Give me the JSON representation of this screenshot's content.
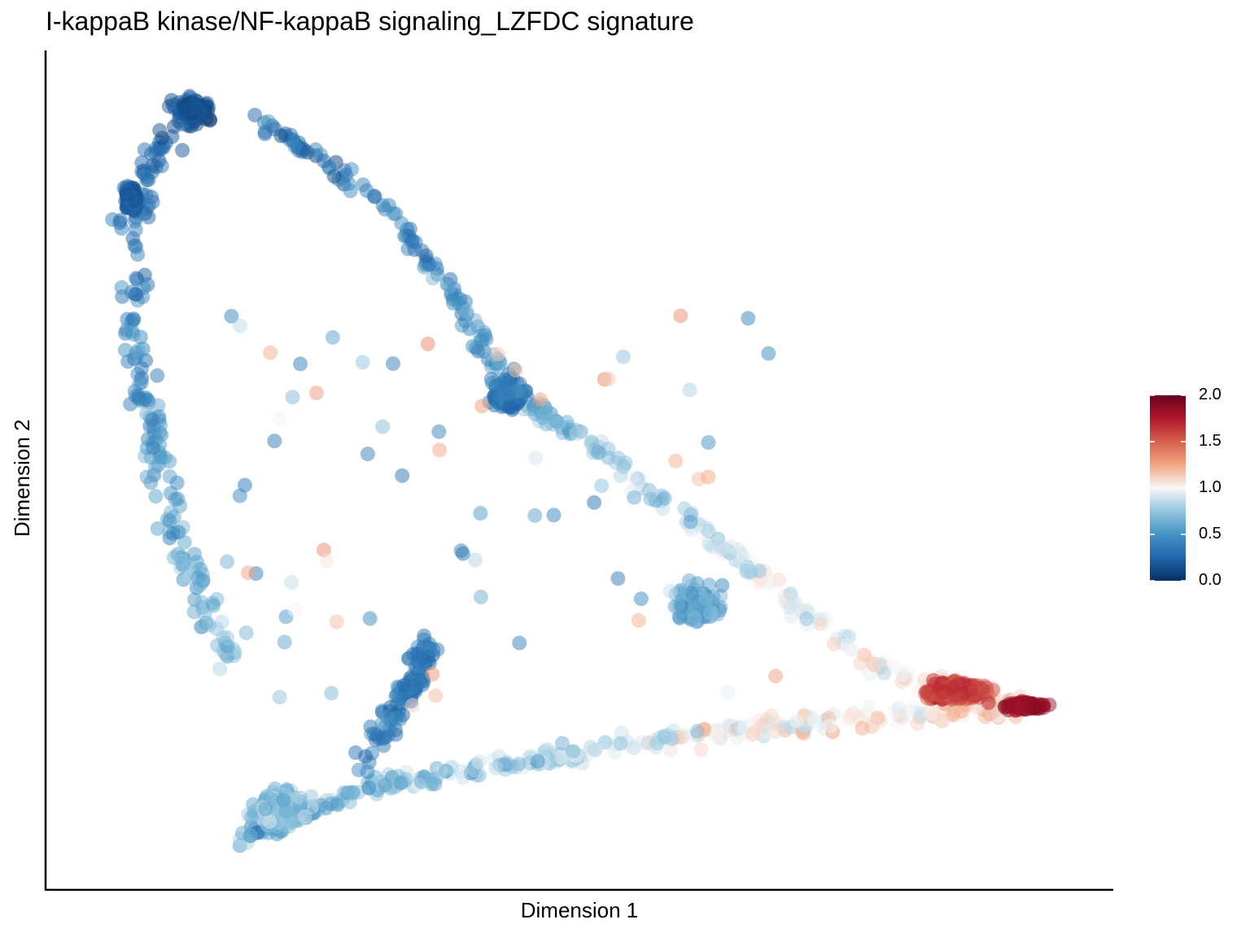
{
  "title": "I-kappaB kinase/NF-kappaB signaling_LZFDC signature",
  "chart_data": {
    "type": "scatter",
    "title": "I-kappaB kinase/NF-kappaB signaling_LZFDC signature",
    "xlabel": "Dimension 1",
    "ylabel": "Dimension 2",
    "x_ticks": "none",
    "y_ticks": "none",
    "grid": false,
    "legend": {
      "type": "colorbar",
      "position": "right",
      "range": [
        0.0,
        2.0
      ],
      "ticks": [
        "2.0",
        "1.5",
        "1.0",
        "0.5",
        "0.0"
      ],
      "colors": [
        "#053061",
        "#2166ac",
        "#4393c3",
        "#92c5de",
        "#f7f7f7",
        "#f4a582",
        "#d6604d",
        "#b2182b",
        "#67001f"
      ]
    },
    "marker_opacity": 0.5,
    "structure": {
      "x_range": [
        0,
        1
      ],
      "y_range": [
        0,
        1
      ],
      "branch_top_left_arc": {
        "x": [
          0.12,
          0.1,
          0.05,
          0.06,
          0.1,
          0.15
        ],
        "y": [
          0.95,
          0.97,
          0.83,
          0.6,
          0.4,
          0.25
        ],
        "value_mean": 0.35
      },
      "branch_upper_diagonal": {
        "x": [
          0.18,
          0.3,
          0.38,
          0.43,
          0.5,
          0.6,
          0.7,
          0.8,
          0.95
        ],
        "y": [
          0.95,
          0.85,
          0.72,
          0.6,
          0.55,
          0.45,
          0.35,
          0.25,
          0.2
        ],
        "value_mean": 0.9
      },
      "branch_bottom_edge": {
        "x": [
          0.16,
          0.3,
          0.45,
          0.6,
          0.75,
          0.95
        ],
        "y": [
          0.03,
          0.1,
          0.13,
          0.16,
          0.18,
          0.2
        ],
        "value_mean": 0.8
      },
      "cluster_bottom_left": {
        "center": [
          0.2,
          0.07
        ],
        "value_mean": 0.6
      },
      "cluster_inner_branch": {
        "x": [
          0.28,
          0.33,
          0.35
        ],
        "y": [
          0.12,
          0.22,
          0.28
        ],
        "value_mean": 0.3
      },
      "cluster_right_tip": {
        "center": [
          0.9,
          0.21
        ],
        "value_mean": 1.85
      }
    }
  }
}
